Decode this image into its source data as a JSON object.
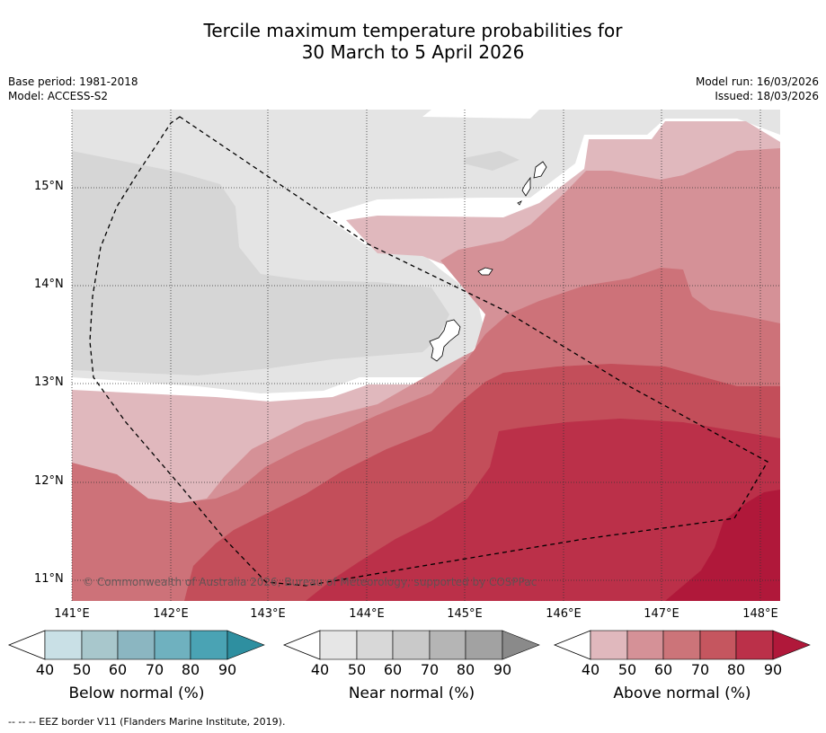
{
  "title": {
    "line1": "Tercile maximum temperature probabilities for",
    "line2": "30 March to 5 April 2026"
  },
  "meta": {
    "base_period": "Base period: 1981-2018",
    "model": "Model: ACCESS-S2",
    "model_run": "Model run: 16/03/2026",
    "issued": "Issued: 18/03/2026"
  },
  "map": {
    "lat_labels": [
      "15°N",
      "14°N",
      "13°N",
      "12°N",
      "11°N"
    ],
    "lon_labels": [
      "141°E",
      "142°E",
      "143°E",
      "144°E",
      "145°E",
      "146°E",
      "147°E",
      "148°E"
    ],
    "copyright": "© Commonwealth of Australia 2026, Bureau of Meteorology, supported by COSPPac"
  },
  "colorbars": {
    "ticks": [
      "40",
      "50",
      "60",
      "70",
      "80",
      "90"
    ],
    "below": {
      "label": "Below normal (%)",
      "colors": [
        "#c9e0e6",
        "#a8c7cc",
        "#8bb6c1",
        "#6fb1bf",
        "#4aa3b4",
        "#2e8fa0"
      ]
    },
    "near": {
      "label": "Near normal (%)",
      "colors": [
        "#e6e6e6",
        "#d8d8d8",
        "#c9c9c9",
        "#b5b5b5",
        "#a2a2a2",
        "#8a8a8a"
      ]
    },
    "above": {
      "label": "Above normal (%)",
      "colors": [
        "#e0b8bd",
        "#d59197",
        "#cc7479",
        "#c5565f",
        "#bb3049",
        "#b0183a"
      ]
    }
  },
  "footnote": "--  --  -- EEZ border V11 (Flanders Marine Institute, 2019)."
}
